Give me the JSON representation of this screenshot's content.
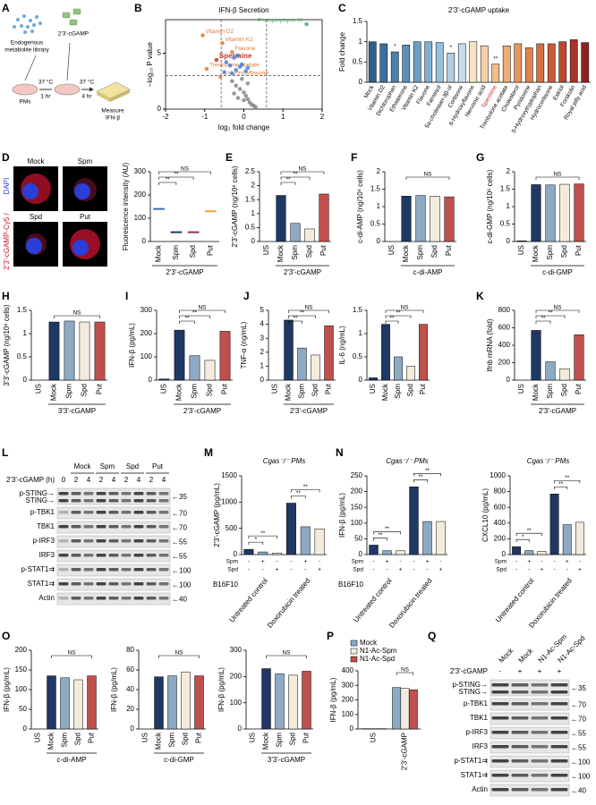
{
  "panel_letters": [
    "A",
    "B",
    "C",
    "D",
    "E",
    "F",
    "G",
    "H",
    "I",
    "J",
    "K",
    "L",
    "M",
    "N",
    "O",
    "P",
    "Q"
  ],
  "panel_a": {
    "library": [
      "Endogenous",
      "metabolite library"
    ],
    "ligand": "2'3'-cGAMP",
    "cells": "PMs",
    "step1_temp": "37 °C",
    "step1_time": "1 hr",
    "step2_temp": "37 °C",
    "step2_time": "4 hr",
    "readout": [
      "Measure",
      "IFN-β"
    ]
  },
  "panel_d": {
    "images": [
      "Mock",
      "Spm",
      "Spd",
      "Put"
    ],
    "stain": [
      "2'3'-cGAMP-Cy5 /",
      "DAPI"
    ]
  },
  "chart_data": [
    {
      "type": "scatter",
      "title": "IFN-β Secretion",
      "xlabel": "log₂ fold change",
      "ylabel": "–log₁₀ P value",
      "xlim": [
        -2,
        2
      ],
      "xticks": [
        -2,
        -1,
        0,
        1,
        2
      ],
      "ylim": [
        0,
        8
      ],
      "yticks": [
        0,
        5
      ],
      "thresholds_x": [
        -0.58,
        0.58
      ],
      "threshold_y": 3,
      "series": [
        {
          "color": "#5aa469",
          "x": [
            1.6
          ],
          "y": [
            7.6
          ],
          "labels": [
            "Protoporphyrin IX"
          ]
        },
        {
          "color": "#e07b39",
          "x": [
            -1.05,
            -0.55,
            -0.3,
            -0.95,
            -0.6
          ],
          "y": [
            6.6,
            5.9,
            5.1,
            3.6,
            2.9
          ],
          "labels": [
            "Vitamin D2",
            "Vitamin K2",
            "Flavone",
            "Trenbolone acetate",
            "6-Hydroxyflavone"
          ]
        },
        {
          "color": "#c0392b",
          "x": [
            -0.7
          ],
          "y": [
            4.4
          ],
          "labels": [
            "Spermine"
          ]
        },
        {
          "color": "#4f7fdc",
          "x": [
            -0.45,
            -0.35,
            -0.25,
            -0.2,
            -0.1,
            -0.05,
            0.05,
            -0.5,
            -0.15,
            0.1,
            -0.3
          ],
          "y": [
            4.2,
            3.9,
            4.6,
            3.5,
            3.8,
            4.0,
            3.4,
            3.3,
            4.8,
            3.7,
            3.2
          ]
        },
        {
          "color": "#888888",
          "x": [
            -0.3,
            -0.2,
            -0.1,
            0,
            0.05,
            0.1,
            0.15,
            -0.05,
            0.2,
            -0.15,
            0.25,
            0.3,
            0,
            -0.25,
            0.1
          ],
          "y": [
            2.5,
            2.1,
            1.8,
            1.5,
            1.2,
            0.9,
            0.6,
            2.7,
            0.4,
            1.0,
            0.3,
            0.2,
            0.8,
            1.4,
            2.3
          ]
        }
      ]
    },
    {
      "type": "bar",
      "title": "2'3'-cGAMP uptake",
      "ylabel": "Fold change",
      "ylim": [
        0,
        1.5
      ],
      "yticks": [
        0,
        0.5,
        1,
        1.5
      ],
      "categories": [
        "Mock",
        "Vitamin D2",
        "Dichlorophen",
        "Ethisterone",
        "Vitamin K2",
        "Flavone",
        "Farnesol",
        "5α-cholestan-3β-ol",
        "Cortisone",
        "6-Hydroxyflavone",
        "Nervonic acid",
        "Spermine",
        "Trenbolone acetate",
        "Cholesterol",
        "Pyridoxine",
        "5-Hydroxytryptophan",
        "Hydrocortisone",
        "Estriol",
        "Forskolin",
        "Royal jelly acid"
      ],
      "values": [
        1.0,
        0.95,
        0.75,
        0.92,
        1.0,
        1.0,
        0.98,
        0.72,
        0.95,
        1.0,
        0.9,
        0.45,
        0.9,
        0.95,
        0.85,
        0.95,
        0.95,
        1.0,
        1.05,
        0.98
      ],
      "bar_annotations": [
        null,
        null,
        "*",
        null,
        null,
        null,
        null,
        "*",
        null,
        null,
        null,
        "**",
        null,
        null,
        null,
        null,
        null,
        null,
        null,
        null
      ],
      "colors": [
        "#2e5e8e",
        "#3b6fa0",
        "#4a80b0",
        "#5b90bd",
        "#6d9fc8",
        "#82afd2",
        "#98bedb",
        "#afcde4",
        "#c7dcec",
        "#f6e3c6",
        "#f5d1a8",
        "#f2bf8c",
        "#eeab73",
        "#e8975e",
        "#e0834d",
        "#d66f40",
        "#c95b35",
        "#b9482e",
        "#a63628",
        "#8c2323"
      ],
      "label_colors": [
        "#000",
        "#000",
        "#000",
        "#000",
        "#000",
        "#000",
        "#000",
        "#000",
        "#000",
        "#000",
        "#000",
        "#d62728",
        "#000",
        "#000",
        "#000",
        "#000",
        "#000",
        "#000",
        "#000",
        "#000"
      ]
    },
    {
      "type": "dot",
      "ylabel": "Fluorescence intensity (AU)",
      "ylim": [
        0,
        300
      ],
      "yticks": [
        0,
        100,
        200,
        300
      ],
      "categories": [
        "Mock",
        "Spm",
        "Spd",
        "Put"
      ],
      "values": [
        140,
        40,
        40,
        130
      ],
      "colors": [
        "#2f6fb0",
        "#1f3864",
        "#9b2d5a",
        "#e8a33d"
      ],
      "group_label": "2'3'-cGAMP",
      "annotations": [
        "**",
        "**",
        "NS"
      ]
    },
    {
      "type": "bar",
      "ylabel": "2'3'-cGAMP (ng/10⁶ cells)",
      "ylim": [
        0,
        2.5
      ],
      "yticks": [
        0,
        0.5,
        1,
        1.5,
        2,
        2.5
      ],
      "categories": [
        "US",
        "Mock",
        "Spm",
        "Spd",
        "Put"
      ],
      "values": [
        0,
        1.65,
        0.65,
        0.45,
        1.7
      ],
      "colors": [
        "#1f3864",
        "#1f3864",
        "#8da9c4",
        "#f3ecdc",
        "#c0504d"
      ],
      "group_label": "2'3'-cGAMP",
      "annotations": [
        "**",
        "**",
        "NS"
      ]
    },
    {
      "type": "bar",
      "ylabel": "c-di-AMP (ng/10⁶ cells)",
      "ylim": [
        0,
        2
      ],
      "yticks": [
        0,
        0.5,
        1,
        1.5,
        2
      ],
      "categories": [
        "US",
        "Mock",
        "Spm",
        "Spd",
        "Put"
      ],
      "values": [
        0,
        1.3,
        1.32,
        1.3,
        1.28
      ],
      "colors": [
        "#1f3864",
        "#1f3864",
        "#8da9c4",
        "#f3ecdc",
        "#c0504d"
      ],
      "group_label": "c-di-AMP",
      "annotations": [
        "NS"
      ]
    },
    {
      "type": "bar",
      "ylabel": "c-di-GMP (ng/10⁶ cells)",
      "ylim": [
        0,
        2
      ],
      "yticks": [
        0,
        0.5,
        1,
        1.5,
        2
      ],
      "categories": [
        "US",
        "Mock",
        "Spm",
        "Spd",
        "Put"
      ],
      "values": [
        0.02,
        1.63,
        1.62,
        1.64,
        1.65
      ],
      "colors": [
        "#1f3864",
        "#1f3864",
        "#8da9c4",
        "#f3ecdc",
        "#c0504d"
      ],
      "group_label": "c-di-GMP",
      "annotations": [
        "NS"
      ]
    },
    {
      "type": "bar",
      "ylabel": "3'3'-cGAMP (ng/10⁶ cells)",
      "ylim": [
        0,
        1.5
      ],
      "yticks": [
        0,
        0.5,
        1,
        1.5
      ],
      "categories": [
        "US",
        "Mock",
        "Spm",
        "Spd",
        "Put"
      ],
      "values": [
        0,
        1.25,
        1.27,
        1.25,
        1.25
      ],
      "colors": [
        "#1f3864",
        "#1f3864",
        "#8da9c4",
        "#f3ecdc",
        "#c0504d"
      ],
      "group_label": "3'3'-cGAMP",
      "annotations": [
        "NS"
      ]
    },
    {
      "type": "bar",
      "ylabel": "IFN-β (pg/mL)",
      "ylim": [
        0,
        300
      ],
      "yticks": [
        0,
        100,
        200,
        300
      ],
      "categories": [
        "US",
        "Mock",
        "Spm",
        "Spd",
        "Put"
      ],
      "values": [
        5,
        215,
        105,
        85,
        210
      ],
      "colors": [
        "#1f3864",
        "#1f3864",
        "#8da9c4",
        "#f3ecdc",
        "#c0504d"
      ],
      "group_label": "2'3'-cGAMP",
      "annotations": [
        "**",
        "**",
        "NS"
      ]
    },
    {
      "type": "bar",
      "ylabel": "TNF-α (ng/mL)",
      "ylim": [
        0,
        5
      ],
      "yticks": [
        0,
        1,
        2,
        3,
        4,
        5
      ],
      "categories": [
        "US",
        "Mock",
        "Spm",
        "Spd",
        "Put"
      ],
      "values": [
        0,
        4.3,
        2.3,
        1.8,
        3.9
      ],
      "colors": [
        "#1f3864",
        "#1f3864",
        "#8da9c4",
        "#f3ecdc",
        "#c0504d"
      ],
      "group_label": "2'3'-cGAMP",
      "annotations": [
        "**",
        "**",
        "NS"
      ]
    },
    {
      "type": "bar",
      "ylabel": "IL-6 (ng/mL)",
      "ylim": [
        0,
        1.5
      ],
      "yticks": [
        0,
        0.5,
        1,
        1.5
      ],
      "categories": [
        "US",
        "Mock",
        "Spm",
        "Spd",
        "Put"
      ],
      "values": [
        0.05,
        1.2,
        0.5,
        0.3,
        1.2
      ],
      "colors": [
        "#1f3864",
        "#1f3864",
        "#8da9c4",
        "#f3ecdc",
        "#c0504d"
      ],
      "annotations": [
        "**",
        "**",
        "NS"
      ]
    },
    {
      "type": "bar",
      "ylabel": "Ifnb mRNA (fold)",
      "ylim": [
        0,
        800
      ],
      "yticks": [
        0,
        200,
        400,
        600,
        800
      ],
      "categories": [
        "US",
        "Mock",
        "Spm",
        "Spd",
        "Put"
      ],
      "values": [
        0,
        570,
        210,
        130,
        520
      ],
      "colors": [
        "#1f3864",
        "#1f3864",
        "#8da9c4",
        "#f3ecdc",
        "#c0504d"
      ],
      "group_label": "2'3'-cGAMP",
      "annotations": [
        "**",
        "**",
        "NS"
      ]
    },
    {
      "type": "bar",
      "title": "Cgas⁻/⁻ PMs",
      "ylabel": "2'3'-cGAMP (pg/mL)",
      "ylim": [
        0,
        1500
      ],
      "yticks": [
        0,
        500,
        1000,
        1500
      ],
      "categories": [
        null,
        null,
        null,
        null,
        null,
        null
      ],
      "values": [
        100,
        50,
        30,
        980,
        530,
        490
      ],
      "colors": [
        "#1f3864",
        "#8da9c4",
        "#f3ecdc",
        "#1f3864",
        "#8da9c4",
        "#f3ecdc"
      ],
      "group_labels": [
        "Untreated control",
        "Doxorubicin treated"
      ],
      "cell_line": "B16F10",
      "rows": [
        {
          "name": "Spm",
          "marks": [
            "-",
            "+",
            "-",
            "-",
            "+",
            "-"
          ]
        },
        {
          "name": "Spd",
          "marks": [
            "-",
            "-",
            "+",
            "-",
            "-",
            "+"
          ]
        }
      ],
      "annotations": [
        "*",
        "**",
        "**",
        "**"
      ]
    },
    {
      "type": "bar",
      "title": "Cgas⁻/⁻ PMs",
      "ylabel": "IFN-β (pg/mL)",
      "ylim": [
        0,
        250
      ],
      "yticks": [
        0,
        50,
        100,
        150,
        200,
        250
      ],
      "categories": [
        null,
        null,
        null,
        null,
        null,
        null
      ],
      "values": [
        30,
        12,
        12,
        215,
        105,
        105
      ],
      "colors": [
        "#1f3864",
        "#8da9c4",
        "#f3ecdc",
        "#1f3864",
        "#8da9c4",
        "#f3ecdc"
      ],
      "group_labels": [
        "Untreated control",
        "Doxorubicin treated"
      ],
      "cell_line": "B16F10",
      "rows": [
        {
          "name": "Spm",
          "marks": [
            "-",
            "+",
            "-",
            "-",
            "+",
            "-"
          ]
        },
        {
          "name": "Spd",
          "marks": [
            "-",
            "-",
            "+",
            "-",
            "-",
            "+"
          ]
        }
      ],
      "annotations": [
        "**",
        "**",
        "**",
        "**"
      ]
    },
    {
      "type": "bar",
      "title": "Cgas⁻/⁻ PMs",
      "ylabel": "CXCL10 (pg/mL)",
      "ylim": [
        0,
        1000
      ],
      "yticks": [
        0,
        200,
        400,
        600,
        800,
        1000
      ],
      "categories": [
        null,
        null,
        null,
        null,
        null,
        null
      ],
      "values": [
        100,
        50,
        40,
        770,
        380,
        410
      ],
      "colors": [
        "#1f3864",
        "#8da9c4",
        "#f3ecdc",
        "#1f3864",
        "#8da9c4",
        "#f3ecdc"
      ],
      "group_labels": [
        "Untreated control",
        "Doxorubicin treated"
      ],
      "rows": [
        {
          "name": "Spm",
          "marks": [
            "-",
            "+",
            "-",
            "-",
            "+",
            "-"
          ]
        },
        {
          "name": "Spd",
          "marks": [
            "-",
            "-",
            "+",
            "-",
            "-",
            "+"
          ]
        }
      ],
      "annotations": [
        "*",
        "**",
        "**",
        "**"
      ]
    },
    {
      "type": "bar",
      "ylabel": "IFN-β (pg/mL)",
      "ylim": [
        0,
        200
      ],
      "yticks": [
        0,
        50,
        100,
        150,
        200
      ],
      "categories": [
        "US",
        "Mock",
        "Spm",
        "Spd",
        "Put"
      ],
      "values": [
        0,
        135,
        130,
        125,
        135
      ],
      "colors": [
        "#1f3864",
        "#1f3864",
        "#8da9c4",
        "#f3ecdc",
        "#c0504d"
      ],
      "group_label": "c-di-AMP",
      "annotations": [
        "NS"
      ]
    },
    {
      "type": "bar",
      "ylabel": "IFN-β (pg/mL)",
      "ylim": [
        0,
        80
      ],
      "yticks": [
        0,
        20,
        40,
        60,
        80
      ],
      "categories": [
        "US",
        "Mock",
        "Spm",
        "Spd",
        "Put"
      ],
      "values": [
        0,
        53,
        54,
        58,
        54
      ],
      "colors": [
        "#1f3864",
        "#1f3864",
        "#8da9c4",
        "#f3ecdc",
        "#c0504d"
      ],
      "group_label": "c-di-GMP",
      "annotations": [
        "NS"
      ]
    },
    {
      "type": "bar",
      "ylabel": "IFN-β (pg/mL)",
      "ylim": [
        0,
        300
      ],
      "yticks": [
        0,
        100,
        200,
        300
      ],
      "categories": [
        "US",
        "Mock",
        "Spm",
        "Spd",
        "Put"
      ],
      "values": [
        0,
        230,
        210,
        205,
        220
      ],
      "colors": [
        "#1f3864",
        "#1f3864",
        "#8da9c4",
        "#f3ecdc",
        "#c0504d"
      ],
      "group_label": "3'3'-cGAMP",
      "annotations": [
        "NS"
      ]
    },
    {
      "type": "grouped_bar",
      "ylabel": "IFN-β (pg/mL)",
      "ylim": [
        0,
        400
      ],
      "yticks": [
        0,
        100,
        200,
        300,
        400
      ],
      "categories": [
        "US",
        "2'3'-cGAMP"
      ],
      "legend": "top-left",
      "annotations": [
        "NS"
      ],
      "series": [
        {
          "name": "Mock",
          "color": "#8da9c4",
          "values": [
            2,
            285
          ]
        },
        {
          "name": "N1-Ac-Spm",
          "color": "#f3ecdc",
          "values": [
            2,
            280
          ]
        },
        {
          "name": "N1-Ac-Spd",
          "color": "#c0504d",
          "values": [
            2,
            270
          ]
        }
      ]
    }
  ],
  "blot_l": {
    "treatment": "2'3'-cGAMP (h)",
    "times": [
      "0",
      "2",
      "4",
      "2",
      "4",
      "2",
      "4",
      "2",
      "4"
    ],
    "groups": [
      "Mock",
      "Spm",
      "Spd",
      "Put"
    ],
    "rows": [
      {
        "labels": [
          "p-STING→",
          "STING→"
        ],
        "marker": "←35"
      },
      {
        "labels": [
          "p-TBK1"
        ],
        "marker": "←70"
      },
      {
        "labels": [
          "TBK1"
        ],
        "marker": "←70"
      },
      {
        "labels": [
          "p-IRF3"
        ],
        "marker": "←55"
      },
      {
        "labels": [
          "IRF3"
        ],
        "marker": "←55"
      },
      {
        "labels": [
          "p-STAT1⇉"
        ],
        "marker": "←100"
      },
      {
        "labels": [
          "STAT1⇉"
        ],
        "marker": "←100"
      },
      {
        "labels": [
          "Actin"
        ],
        "marker": "←40"
      }
    ]
  },
  "blot_q": {
    "treatment": "2'3'-cGAMP",
    "columns": [
      "Mock",
      "Mock",
      "N1-Ac-Spm",
      "N1-Ac-Spd"
    ],
    "signs": [
      "-",
      "+",
      "+",
      "+"
    ],
    "rows": [
      {
        "labels": [
          "p-STING→",
          "STING→"
        ],
        "marker": "←35"
      },
      {
        "labels": [
          "p-TBK1"
        ],
        "marker": "←70"
      },
      {
        "labels": [
          "TBK1"
        ],
        "marker": "←70"
      },
      {
        "labels": [
          "p-IRF3"
        ],
        "marker": "←55"
      },
      {
        "labels": [
          "IRF3"
        ],
        "marker": "←55"
      },
      {
        "labels": [
          "p-STAT1⇉"
        ],
        "marker": "←100"
      },
      {
        "labels": [
          "STAT1⇉"
        ],
        "marker": "←100"
      },
      {
        "labels": [
          "Actin"
        ],
        "marker": "←40"
      }
    ]
  }
}
